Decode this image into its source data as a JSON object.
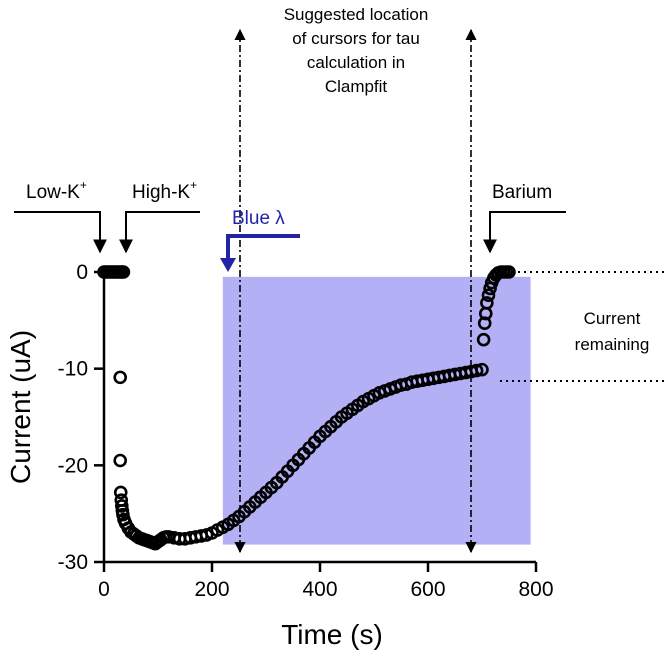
{
  "chart_data": {
    "type": "scatter",
    "xlabel": "Time (s)",
    "ylabel": "Current (uA)",
    "xlim": [
      0,
      800
    ],
    "ylim": [
      -30,
      0
    ],
    "x_ticks": [
      0,
      200,
      400,
      600,
      800
    ],
    "y_ticks": [
      0,
      -10,
      -20,
      -30
    ],
    "x_tick_labels": [
      "0",
      "200",
      "400",
      "600",
      "800"
    ],
    "y_tick_labels": [
      "0",
      "-10",
      "-20",
      "-30"
    ],
    "grid": false,
    "legend": "none",
    "marker": "open-circle",
    "marker_color": "#000000",
    "blue_region": {
      "x_start": 220,
      "x_end": 790,
      "y_top": -0.5,
      "y_bottom": -28.2,
      "color": "#b3b0f6"
    },
    "cursor_lines": [
      255,
      680
    ],
    "series": [
      {
        "points": [
          [
            0,
            0
          ],
          [
            3,
            0
          ],
          [
            6,
            0
          ],
          [
            9,
            0
          ],
          [
            12,
            0
          ],
          [
            15,
            0
          ],
          [
            18,
            0
          ],
          [
            21,
            0
          ],
          [
            24,
            0
          ],
          [
            27,
            0
          ],
          [
            30,
            0
          ],
          [
            32,
            0
          ],
          [
            34,
            0
          ],
          [
            36,
            0
          ],
          [
            30,
            -10.9
          ],
          [
            30,
            -19.5
          ],
          [
            31,
            -22.8
          ],
          [
            32,
            -23.6
          ],
          [
            33,
            -24.2
          ],
          [
            34,
            -24.7
          ],
          [
            35,
            -25.1
          ],
          [
            37,
            -25.6
          ],
          [
            40,
            -26.0
          ],
          [
            45,
            -26.5
          ],
          [
            50,
            -26.9
          ],
          [
            55,
            -27.1
          ],
          [
            60,
            -27.3
          ],
          [
            65,
            -27.5
          ],
          [
            70,
            -27.6
          ],
          [
            75,
            -27.7
          ],
          [
            80,
            -27.8
          ],
          [
            85,
            -27.9
          ],
          [
            90,
            -28.0
          ],
          [
            95,
            -28.1
          ],
          [
            100,
            -27.9
          ],
          [
            105,
            -27.7
          ],
          [
            110,
            -27.5
          ],
          [
            115,
            -27.4
          ],
          [
            120,
            -27.4
          ],
          [
            130,
            -27.5
          ],
          [
            140,
            -27.6
          ],
          [
            150,
            -27.6
          ],
          [
            160,
            -27.5
          ],
          [
            170,
            -27.4
          ],
          [
            180,
            -27.3
          ],
          [
            190,
            -27.2
          ],
          [
            200,
            -27.0
          ],
          [
            210,
            -26.7
          ],
          [
            220,
            -26.4
          ],
          [
            230,
            -26.1
          ],
          [
            240,
            -25.7
          ],
          [
            250,
            -25.3
          ],
          [
            260,
            -24.8
          ],
          [
            270,
            -24.3
          ],
          [
            280,
            -23.8
          ],
          [
            290,
            -23.3
          ],
          [
            300,
            -22.8
          ],
          [
            310,
            -22.3
          ],
          [
            320,
            -21.8
          ],
          [
            330,
            -21.2
          ],
          [
            340,
            -20.6
          ],
          [
            350,
            -20.0
          ],
          [
            360,
            -19.4
          ],
          [
            370,
            -18.8
          ],
          [
            380,
            -18.2
          ],
          [
            390,
            -17.6
          ],
          [
            400,
            -17.0
          ],
          [
            410,
            -16.5
          ],
          [
            420,
            -16.0
          ],
          [
            430,
            -15.5
          ],
          [
            440,
            -15.0
          ],
          [
            450,
            -14.6
          ],
          [
            460,
            -14.2
          ],
          [
            470,
            -13.8
          ],
          [
            480,
            -13.4
          ],
          [
            490,
            -13.1
          ],
          [
            500,
            -12.8
          ],
          [
            510,
            -12.5
          ],
          [
            520,
            -12.3
          ],
          [
            530,
            -12.1
          ],
          [
            540,
            -11.9
          ],
          [
            550,
            -11.7
          ],
          [
            560,
            -11.6
          ],
          [
            570,
            -11.4
          ],
          [
            580,
            -11.3
          ],
          [
            590,
            -11.2
          ],
          [
            600,
            -11.1
          ],
          [
            610,
            -11.0
          ],
          [
            620,
            -10.9
          ],
          [
            630,
            -10.8
          ],
          [
            640,
            -10.7
          ],
          [
            650,
            -10.6
          ],
          [
            660,
            -10.5
          ],
          [
            670,
            -10.4
          ],
          [
            680,
            -10.3
          ],
          [
            690,
            -10.2
          ],
          [
            700,
            -10.1
          ],
          [
            703,
            -7.0
          ],
          [
            705,
            -5.3
          ],
          [
            707,
            -4.3
          ],
          [
            709,
            -3.2
          ],
          [
            712,
            -2.4
          ],
          [
            715,
            -1.7
          ],
          [
            718,
            -1.1
          ],
          [
            722,
            -0.6
          ],
          [
            726,
            -0.3
          ],
          [
            730,
            -0.1
          ],
          [
            735,
            0
          ],
          [
            740,
            0
          ],
          [
            745,
            0
          ],
          [
            750,
            0
          ]
        ]
      }
    ],
    "annotations": {
      "low_k": {
        "text": "Low-K",
        "sup": "+"
      },
      "high_k": {
        "text": "High-K",
        "sup": "+"
      },
      "blue": {
        "text": "Blue λ",
        "color": "#2323a8"
      },
      "barium": {
        "text": "Barium"
      },
      "suggested": [
        "Suggested location",
        "of cursors for tau",
        "calculation in",
        "Clampfit"
      ],
      "current_remaining": [
        "Current",
        "remaining"
      ]
    }
  }
}
